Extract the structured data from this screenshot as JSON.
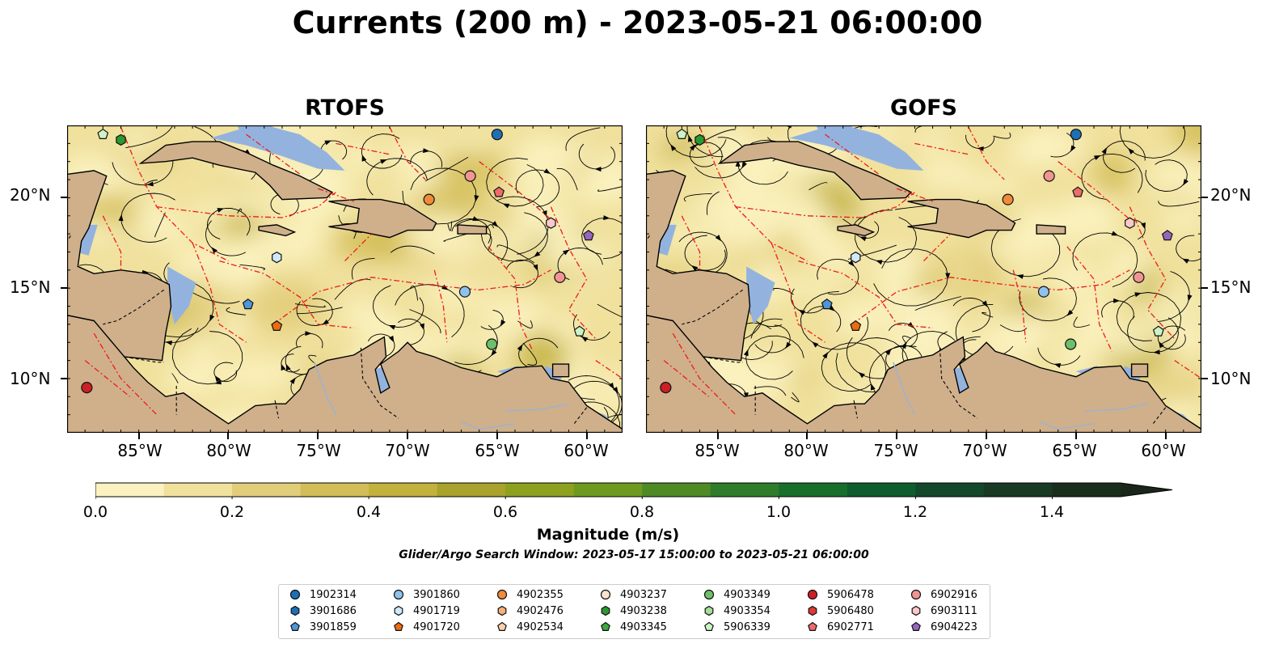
{
  "title": "Currents (200 m) - 2023-05-21 06:00:00",
  "panels": [
    {
      "title": "RTOFS"
    },
    {
      "title": "GOFS"
    }
  ],
  "axes": {
    "x_ticks": [
      "85°W",
      "80°W",
      "75°W",
      "70°W",
      "65°W",
      "60°W"
    ],
    "y_ticks": [
      "20°N",
      "15°N",
      "10°N"
    ],
    "lon_range": [
      -89,
      -58
    ],
    "lat_range": [
      7,
      24
    ]
  },
  "colorbar": {
    "label": "Magnitude (m/s)",
    "ticks": [
      "0.0",
      "0.2",
      "0.4",
      "0.6",
      "0.8",
      "1.0",
      "1.2",
      "1.4"
    ],
    "range": [
      0,
      1.5
    ],
    "extend": "max",
    "colors": [
      "#fbf2c0",
      "#f0e19d",
      "#e2cd7a",
      "#d3bd58",
      "#c3b13e",
      "#a9a22c",
      "#8da11f",
      "#6e9a1f",
      "#4e8b24",
      "#2f7d2a",
      "#16702c",
      "#0f5c2e",
      "#14482a",
      "#193a24",
      "#1a2e1c"
    ]
  },
  "search_window": "Glider/Argo Search Window: 2023-05-17 15:00:00 to 2023-05-21 06:00:00",
  "colors": {
    "land": "#cfb08b",
    "shallow_water": "#93b3de",
    "eez_lines": "#ee1c1c"
  },
  "legend": [
    {
      "id": "1902314",
      "shape": "circle",
      "color": "#1f6fb4"
    },
    {
      "id": "3901686",
      "shape": "hexagon",
      "color": "#1f6fb4"
    },
    {
      "id": "3901859",
      "shape": "pentagon",
      "color": "#4e96d8"
    },
    {
      "id": "3901860",
      "shape": "circle",
      "color": "#8ec2ec"
    },
    {
      "id": "4901719",
      "shape": "hexagon",
      "color": "#cfe9fb"
    },
    {
      "id": "4901720",
      "shape": "pentagon",
      "color": "#ea6d11"
    },
    {
      "id": "4902355",
      "shape": "circle",
      "color": "#f08b3a"
    },
    {
      "id": "4902476",
      "shape": "hexagon",
      "color": "#f6b07a"
    },
    {
      "id": "4902534",
      "shape": "pentagon",
      "color": "#fbcfa8"
    },
    {
      "id": "4903237",
      "shape": "circle",
      "color": "#fde3cc"
    },
    {
      "id": "4903238",
      "shape": "hexagon",
      "color": "#2a9930"
    },
    {
      "id": "4903345",
      "shape": "pentagon",
      "color": "#3fa83f"
    },
    {
      "id": "4903349",
      "shape": "circle",
      "color": "#6cc06a"
    },
    {
      "id": "4903354",
      "shape": "hexagon",
      "color": "#a6dd98"
    },
    {
      "id": "5906339",
      "shape": "pentagon",
      "color": "#ccf3c4"
    },
    {
      "id": "5906478",
      "shape": "circle",
      "color": "#cc2024"
    },
    {
      "id": "5906480",
      "shape": "hexagon",
      "color": "#de3a37"
    },
    {
      "id": "6902771",
      "shape": "pentagon",
      "color": "#ec6c6a"
    },
    {
      "id": "6902916",
      "shape": "circle",
      "color": "#f19593"
    },
    {
      "id": "6903111",
      "shape": "hexagon",
      "color": "#f9c8c8"
    },
    {
      "id": "6904223",
      "shape": "pentagon",
      "color": "#9467bd"
    }
  ],
  "floats": [
    {
      "id": "1902314",
      "lon": -65.0,
      "lat": 23.5
    },
    {
      "id": "4903238",
      "lon": -86.0,
      "lat": 23.2
    },
    {
      "id": "5906339",
      "lon": -87.0,
      "lat": 23.5
    },
    {
      "id": "6902916",
      "lon": -66.5,
      "lat": 21.2
    },
    {
      "id": "6902771",
      "lon": -64.9,
      "lat": 20.3
    },
    {
      "id": "4902355",
      "lon": -68.8,
      "lat": 19.9
    },
    {
      "id": "6903111",
      "lon": -62.0,
      "lat": 18.6
    },
    {
      "id": "6904223",
      "lon": -59.9,
      "lat": 17.9
    },
    {
      "id": "4901719",
      "lon": -77.3,
      "lat": 16.7
    },
    {
      "id": "6902916",
      "lon": -61.5,
      "lat": 15.6
    },
    {
      "id": "3901860",
      "lon": -66.8,
      "lat": 14.8
    },
    {
      "id": "3901859",
      "lon": -78.9,
      "lat": 14.1
    },
    {
      "id": "4901720",
      "lon": -77.3,
      "lat": 12.9
    },
    {
      "id": "5906339",
      "lon": -60.4,
      "lat": 12.6
    },
    {
      "id": "4903349",
      "lon": -65.3,
      "lat": 11.9
    },
    {
      "id": "5906478",
      "lon": -87.9,
      "lat": 9.5
    }
  ]
}
